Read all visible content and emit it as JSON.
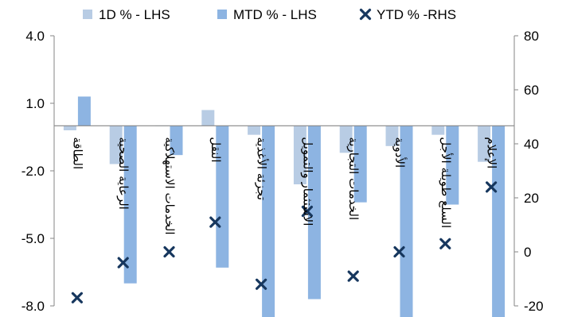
{
  "chart_data": {
    "type": "bar",
    "categories": [
      "الطاقة",
      "الرعاية الصحية",
      "الخدمات الاستهلاكية",
      "النقل",
      "تجزئة الأغذية",
      "الاستثمار والتمويل",
      "الخدمات التجارية",
      "الأدوية",
      "السلع طويلة الأجل",
      "الإعلام"
    ],
    "series": [
      {
        "name": "1D % - LHS",
        "axis": "left",
        "kind": "bar",
        "color": "#B8CCE4",
        "values": [
          -0.2,
          -1.7,
          0.0,
          0.7,
          -0.4,
          -2.6,
          -1.2,
          -0.9,
          -0.4,
          -1.6
        ]
      },
      {
        "name": "MTD % - LHS",
        "axis": "left",
        "kind": "bar",
        "color": "#8DB4E2",
        "values": [
          1.3,
          -7.0,
          -1.3,
          -6.3,
          -8.5,
          -7.7,
          -3.4,
          -8.5,
          -3.5,
          -8.5
        ]
      },
      {
        "name": "YTD % -RHS",
        "axis": "right",
        "kind": "marker",
        "color": "#17375E",
        "values": [
          -17,
          -4,
          0,
          11,
          -12,
          15,
          -9,
          0,
          3,
          24
        ]
      }
    ],
    "y_left": {
      "min": -8.0,
      "max": 4.0,
      "ticks": [
        "4.0",
        "1.0",
        "-2.0",
        "-5.0",
        "-8.0"
      ]
    },
    "y_right": {
      "min": -20,
      "max": 80,
      "ticks": [
        "80",
        "60",
        "40",
        "20",
        "0",
        "-20"
      ]
    },
    "legend_position": "top",
    "grid": false
  }
}
